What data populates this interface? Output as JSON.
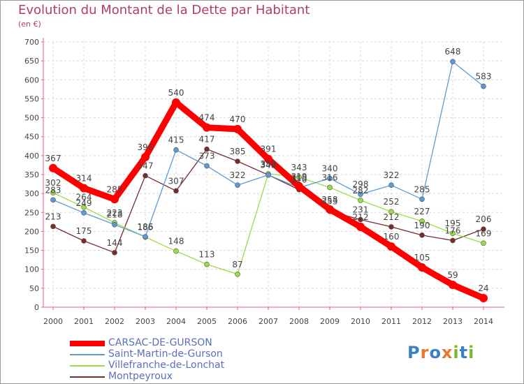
{
  "chart_data": {
    "type": "line",
    "title": "Evolution du Montant de la Dette par Habitant",
    "ylabel": "(en €)",
    "xlabel": "",
    "ylim": [
      0,
      700
    ],
    "yticks": [
      0,
      50,
      100,
      150,
      200,
      250,
      300,
      350,
      400,
      450,
      500,
      550,
      600,
      650,
      700
    ],
    "categories": [
      "2000",
      "2001",
      "2002",
      "2003",
      "2004",
      "2005",
      "2006",
      "2007",
      "2008",
      "2009",
      "2010",
      "2011",
      "2012",
      "2013",
      "2014"
    ],
    "grid": true,
    "series": [
      {
        "name": "CARSAC-DE-GURSON",
        "color": "#ff0000",
        "values": [
          367,
          314,
          285,
          396,
          540,
          474,
          470,
          391,
          319,
          258,
          212,
          160,
          105,
          59,
          24
        ]
      },
      {
        "name": "Saint-Martin-de-Gurson",
        "color": "#5b9bd5",
        "values": [
          283,
          249,
          218,
          186,
          415,
          373,
          322,
          349,
          315,
          340,
          298,
          322,
          285,
          648,
          583
        ]
      },
      {
        "name": "Villefranche-de-Lonchat",
        "color": "#99dd44",
        "values": [
          302,
          264,
          223,
          185,
          148,
          113,
          87,
          352,
          343,
          316,
          282,
          252,
          227,
          195,
          169
        ]
      },
      {
        "name": "Montpeyroux",
        "color": "#7a2a2a",
        "values": [
          213,
          175,
          144,
          347,
          307,
          417,
          385,
          349,
          310,
          253,
          231,
          212,
          190,
          176,
          206
        ]
      }
    ]
  },
  "logo": {
    "text": "Proxiti",
    "p": "P",
    "r": "r",
    "o": "o",
    "x": "x",
    "i1": "i",
    "t": "t",
    "i2": "i"
  }
}
